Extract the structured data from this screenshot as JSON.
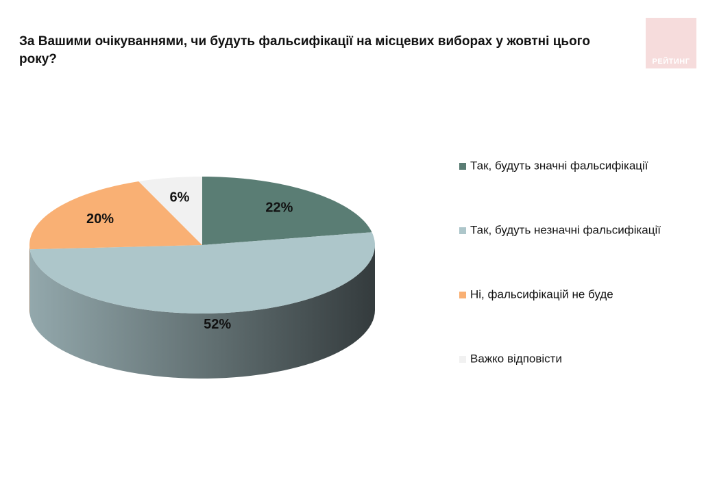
{
  "logo": "РЕЙТИНГ",
  "chart_data": {
    "type": "pie3d",
    "title": "За Вашими очікуваннями, чи будуть фальсифікації на місцевих виборах у жовтні цього року?",
    "series": [
      {
        "name": "Так, будуть значні фальсифікації",
        "color": "#5a7d74"
      },
      {
        "name": "Так, будуть незначні фальсифікації",
        "color": "#adc6ca"
      },
      {
        "name": "Ні, фальсифікацій не буде",
        "color": "#f9b074"
      },
      {
        "name": "Важко відповісти",
        "color": "#f1f1f1"
      }
    ],
    "values": [
      22,
      52,
      20,
      6
    ],
    "value_labels": [
      "22%",
      "52%",
      "20%",
      "6%"
    ],
    "legend": "right"
  }
}
